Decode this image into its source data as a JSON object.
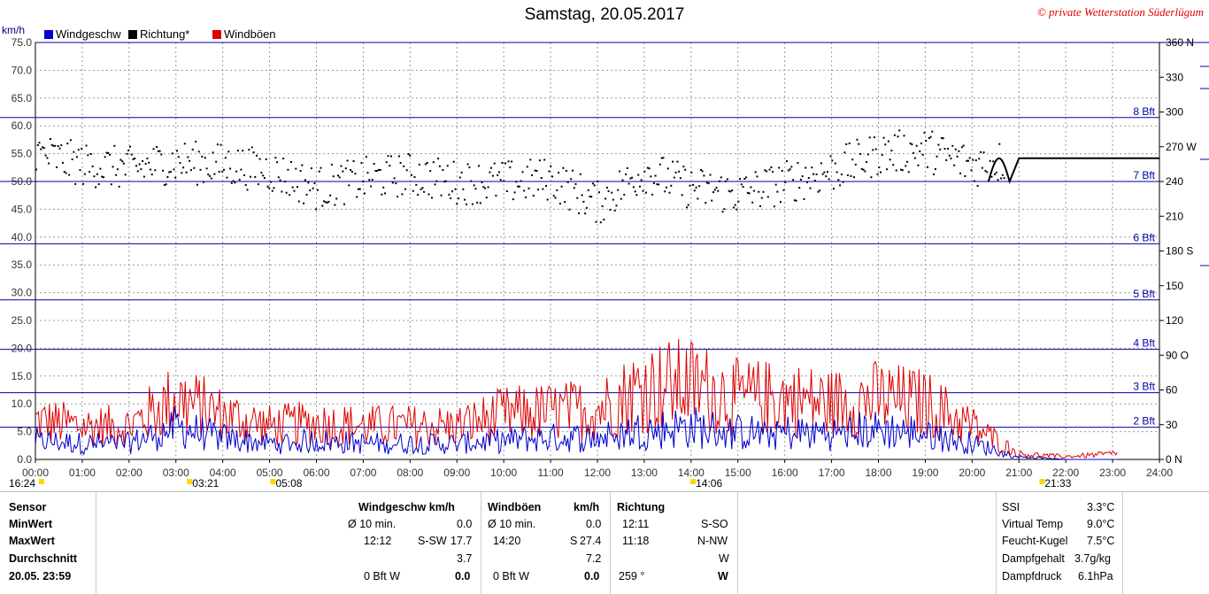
{
  "header": {
    "title": "Samstag, 20.05.2017",
    "copyright": "© private Wetterstation Süderlügum",
    "unit": "km/h"
  },
  "legend": [
    {
      "label": "Windgeschw",
      "color": "#0000cc"
    },
    {
      "label": "Richtung*",
      "color": "#000000"
    },
    {
      "label": "Windböen",
      "color": "#dd0000"
    }
  ],
  "axes": {
    "y_left_ticks": [
      "75.0",
      "70.0",
      "65.0",
      "60.0",
      "55.0",
      "50.0",
      "45.0",
      "40.0",
      "35.0",
      "30.0",
      "25.0",
      "20.0",
      "15.0",
      "10.0",
      "5.0",
      "0.0"
    ],
    "y_right_ticks": [
      "360 N",
      "330",
      "300",
      "270 W",
      "240",
      "210",
      "180 S",
      "150",
      "120",
      "90  O",
      "60",
      "30",
      "0 N"
    ],
    "x_ticks": [
      "00:00",
      "01:00",
      "02:00",
      "03:00",
      "04:00",
      "05:00",
      "06:00",
      "07:00",
      "08:00",
      "09:00",
      "10:00",
      "11:00",
      "12:00",
      "13:00",
      "14:00",
      "15:00",
      "16:00",
      "17:00",
      "18:00",
      "19:00",
      "20:00",
      "21:00",
      "22:00",
      "23:00",
      "24:00"
    ],
    "beaufort": [
      {
        "label": "8 Bft",
        "kmh": 61.5
      },
      {
        "label": "7 Bft",
        "kmh": 50.0
      },
      {
        "label": "6 Bft",
        "kmh": 38.8
      },
      {
        "label": "5 Bft",
        "kmh": 28.7
      },
      {
        "label": "4 Bft",
        "kmh": 19.8
      },
      {
        "label": "3 Bft",
        "kmh": 12.0
      },
      {
        "label": "2 Bft",
        "kmh": 5.8
      }
    ]
  },
  "events": [
    {
      "label": "16:24",
      "hour": 0.0,
      "icon": "sunrise-icon"
    },
    {
      "label": "03:21",
      "hour": 3.35,
      "icon": "moonrise-icon"
    },
    {
      "label": "05:08",
      "hour": 5.13,
      "icon": "sun-icon"
    },
    {
      "label": "14:06",
      "hour": 14.1,
      "icon": "moonset-icon"
    },
    {
      "label": "21:33",
      "hour": 21.55,
      "icon": "sunset-icon"
    }
  ],
  "chart_data": {
    "type": "line",
    "title": "Samstag, 20.05.2017",
    "ylabel": "km/h",
    "xlim": [
      "00:00",
      "24:00"
    ],
    "ylim": [
      0,
      75
    ],
    "y2lim": [
      0,
      360
    ],
    "grid": true,
    "legend_position": "top-left",
    "x": [
      "00:00",
      "01:00",
      "02:00",
      "03:00",
      "04:00",
      "05:00",
      "06:00",
      "07:00",
      "08:00",
      "09:00",
      "10:00",
      "11:00",
      "12:00",
      "13:00",
      "14:00",
      "15:00",
      "16:00",
      "17:00",
      "18:00",
      "19:00",
      "20:00",
      "21:00",
      "22:00",
      "23:00"
    ],
    "series": [
      {
        "name": "Windgeschw",
        "axis": "left",
        "values": [
          3.5,
          3.0,
          3.0,
          6.0,
          4.0,
          3.0,
          3.5,
          3.0,
          3.0,
          3.0,
          3.5,
          4.0,
          4.0,
          5.5,
          6.0,
          5.0,
          5.0,
          5.0,
          5.5,
          5.0,
          3.0,
          0.5,
          0.0,
          0.0
        ]
      },
      {
        "name": "Windböen",
        "axis": "left",
        "values": [
          7.0,
          6.0,
          6.0,
          11.0,
          8.0,
          6.0,
          6.5,
          6.0,
          6.0,
          6.0,
          8.0,
          8.5,
          9.0,
          13.0,
          13.5,
          11.0,
          11.0,
          10.0,
          11.0,
          10.0,
          6.0,
          1.0,
          0.5,
          1.0
        ]
      },
      {
        "name": "Richtung*",
        "axis": "right",
        "values": [
          265,
          255,
          252,
          258,
          255,
          250,
          235,
          243,
          247,
          240,
          240,
          243,
          222,
          250,
          235,
          230,
          240,
          250,
          265,
          268,
          255,
          260,
          260,
          260
        ]
      }
    ]
  },
  "stats": {
    "col_sensor": {
      "header": "Sensor",
      "rows": [
        "MinWert",
        "MaxWert",
        "Durchschnitt",
        "20.05. 23:59"
      ]
    },
    "col_wind": {
      "header": "Windgeschw  km/h",
      "min": {
        "time": "Ø 10 min.",
        "value": "0.0"
      },
      "max": {
        "time": "12:12",
        "dir": "S-SW",
        "value": "17.7"
      },
      "avg": {
        "value": "3.7"
      },
      "last": {
        "time": "0 Bft W",
        "value": "0.0"
      }
    },
    "col_gust": {
      "header": "Windböen",
      "unit": "km/h",
      "min": {
        "time": "Ø 10 min.",
        "value": "0.0"
      },
      "max": {
        "time": "14:20",
        "dir": "S",
        "value": "27.4"
      },
      "avg": {
        "value": "7.2"
      },
      "last": {
        "time": "0 Bft W",
        "value": "0.0"
      }
    },
    "col_dir": {
      "header": "Richtung",
      "min": {
        "time": "12:11",
        "value": "S-SO"
      },
      "max": {
        "time": "11:18",
        "value": "N-NW"
      },
      "avg": {
        "value": "W"
      },
      "last": {
        "time": "259 °",
        "value": "W"
      }
    },
    "col_extra": [
      {
        "label": "SSI",
        "value": "3.3°C"
      },
      {
        "label": "Virtual Temp",
        "value": "9.0°C"
      },
      {
        "label": "Feucht-Kugel",
        "value": "7.5°C"
      },
      {
        "label": "Dampfgehalt",
        "value": "3.7g/kg"
      },
      {
        "label": "Dampfdruck",
        "value": "6.1hPa"
      }
    ]
  }
}
